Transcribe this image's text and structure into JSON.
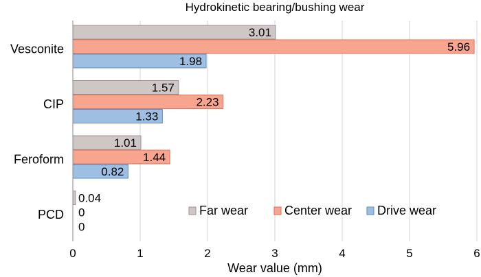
{
  "chart_data": {
    "type": "bar",
    "orientation": "horizontal",
    "title": "Hydrokinetic bearing/bushing wear",
    "xlabel": "Wear value (mm)",
    "ylabel": "",
    "xlim": [
      0,
      6
    ],
    "xticks": [
      "0",
      "1",
      "2",
      "3",
      "4",
      "5",
      "6"
    ],
    "grid": "vertical",
    "categories": [
      "Vesconite",
      "CIP",
      "Feroform",
      "PCD"
    ],
    "series": [
      {
        "name": "Far wear",
        "values": [
          3.01,
          1.57,
          1.01,
          0.04
        ],
        "labels": [
          "3.01",
          "1.57",
          "1.01",
          "0.04"
        ],
        "color": "#cfc6c6",
        "edge": "#9c9292"
      },
      {
        "name": "Center wear",
        "values": [
          5.96,
          2.23,
          1.44,
          0
        ],
        "labels": [
          "5.96",
          "2.23",
          "1.44",
          "0"
        ],
        "color": "#f7a58f",
        "edge": "#e0705a"
      },
      {
        "name": "Drive wear",
        "values": [
          1.98,
          1.33,
          0.82,
          0
        ],
        "labels": [
          "1.98",
          "1.33",
          "0.82",
          "0"
        ],
        "color": "#9ebfe2",
        "edge": "#5a8cc4"
      }
    ],
    "legend_position": "bottom-right"
  }
}
